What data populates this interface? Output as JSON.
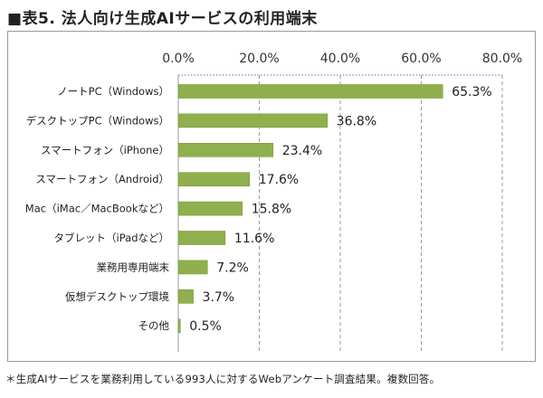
{
  "colors": {
    "bar": "#8fb04c",
    "bar_edge": "#7a9a3c",
    "grid": "#9a9a9a",
    "top_axis": "#6f8fc8"
  },
  "chart_data": {
    "type": "bar",
    "orientation": "horizontal",
    "title": "■表5. 法人向け生成AIサービスの利用端末",
    "categories": [
      "ノートPC（Windows）",
      "デスクトップPC（Windows）",
      "スマートフォン（iPhone）",
      "スマートフォン（Android）",
      "Mac（iMac／MacBookなど）",
      "タブレット（iPadなど）",
      "業務用専用端末",
      "仮想デスクトップ環境",
      "その他"
    ],
    "values": [
      65.3,
      36.8,
      23.4,
      17.6,
      15.8,
      11.6,
      7.2,
      3.7,
      0.5
    ],
    "value_labels": [
      "65.3%",
      "36.8%",
      "23.4%",
      "17.6%",
      "15.8%",
      "11.6%",
      "7.2%",
      "3.7%",
      "0.5%"
    ],
    "xlim": [
      0,
      80
    ],
    "xticks": [
      0,
      20,
      40,
      60,
      80
    ],
    "xtick_labels": [
      "0.0%",
      "20.0%",
      "40.0%",
      "60.0%",
      "80.0%"
    ],
    "xaxis_position": "top",
    "grid": true,
    "legend": "none",
    "footnote": "＊生成AIサービスを業務利用している993人に対するWebアンケート調査結果。複数回答。"
  }
}
